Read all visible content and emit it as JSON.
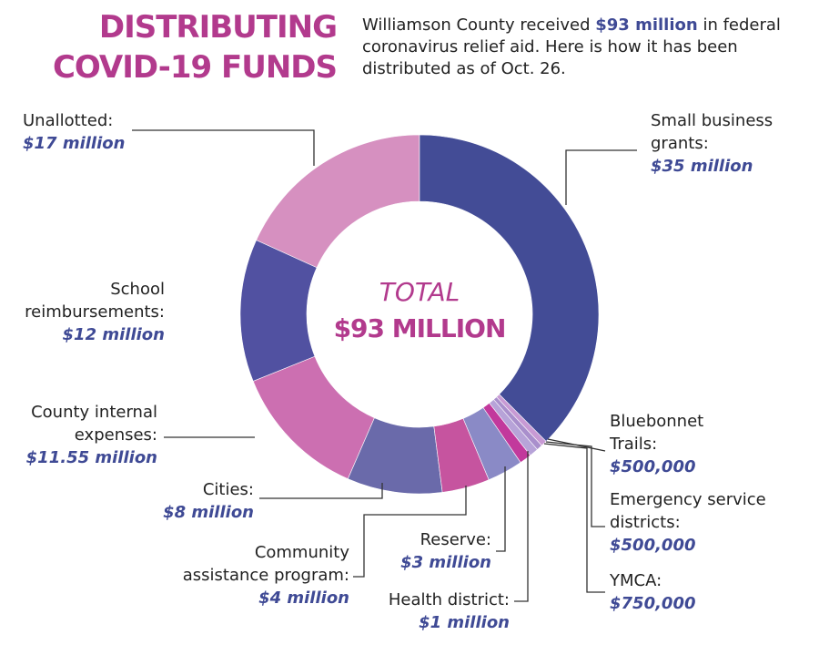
{
  "chart_data": {
    "type": "donut",
    "title": [
      "DISTRIBUTING",
      "COVID-19 FUNDS"
    ],
    "subtitle": [
      "Williamson County received ",
      "$93 million",
      " in federal coronavirus relief aid. Here is how it has been distributed as of Oct. 26."
    ],
    "center_text": [
      "TOTAL",
      "$93 MILLION"
    ],
    "categories": [
      "Small business grants:",
      "Bluebonnet Trails:",
      "Emergency service districts:",
      "YMCA:",
      "Health district:",
      "Reserve:",
      "Community assistance program:",
      "Cities:",
      "County internal expenses:",
      "School reimbursements:",
      "Unallotted:"
    ],
    "values": [
      35000000,
      500000,
      500000,
      750000,
      1000000,
      3000000,
      4000000,
      8000000,
      11550000,
      12000000,
      17000000
    ],
    "value_labels": [
      "$35 million",
      "$500,000",
      "$500,000",
      "$750,000",
      "$1 million",
      "$3 million",
      "$4 million",
      "$8 million",
      "$11.55 million",
      "$12 million",
      "$17 million"
    ],
    "colors": [
      "#434c96",
      "#c89ad4",
      "#a98fcc",
      "#b7a3d8",
      "#c2399c",
      "#8a8ac6",
      "#c6549f",
      "#6a6aaa",
      "#cc6fb1",
      "#5151a1",
      "#d690c0"
    ]
  }
}
